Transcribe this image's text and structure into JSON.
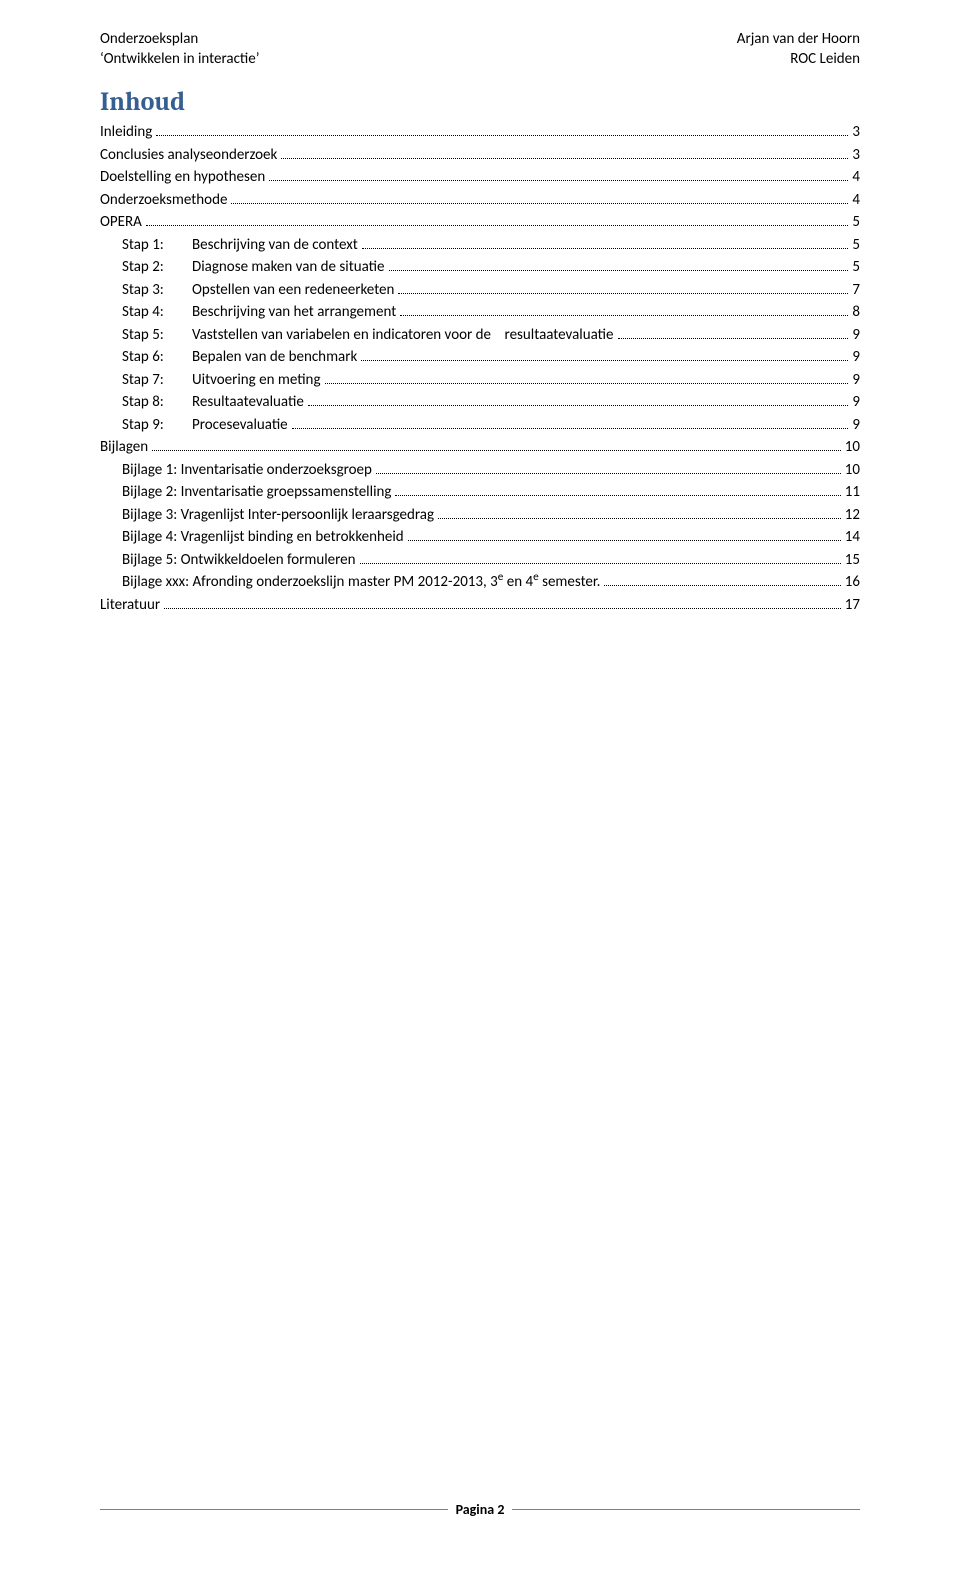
{
  "header": {
    "left_line1": "Onderzoeksplan",
    "left_line2_quoted": "Ontwikkelen in interactie",
    "right_line1": "Arjan van der Hoorn",
    "right_line2": "ROC Leiden"
  },
  "title": "Inhoud",
  "toc": [
    {
      "indent": 0,
      "label": "",
      "title": "Inleiding",
      "page": "3"
    },
    {
      "indent": 0,
      "label": "",
      "title": "Conclusies analyseonderzoek",
      "page": "3"
    },
    {
      "indent": 0,
      "label": "",
      "title": "Doelstelling en hypothesen",
      "page": "4"
    },
    {
      "indent": 0,
      "label": "",
      "title": "Onderzoeksmethode",
      "page": "4"
    },
    {
      "indent": 0,
      "label": "",
      "title": "OPERA",
      "page": "5"
    },
    {
      "indent": 1,
      "label": "Stap 1:",
      "title": "Beschrijving van de context",
      "page": "5"
    },
    {
      "indent": 1,
      "label": "Stap 2:",
      "title": "Diagnose maken van de situatie",
      "page": "5"
    },
    {
      "indent": 1,
      "label": "Stap 3:",
      "title": "Opstellen van een redeneerketen",
      "page": "7"
    },
    {
      "indent": 1,
      "label": "Stap 4:",
      "title": "Beschrijving van het arrangement",
      "page": "8"
    },
    {
      "indent": 1,
      "label": "Stap 5:",
      "title": "Vaststellen van variabelen en indicatoren voor de    resultaatevaluatie",
      "page": "9"
    },
    {
      "indent": 1,
      "label": "Stap 6:",
      "title": "Bepalen van de benchmark",
      "page": "9"
    },
    {
      "indent": 1,
      "label": "Stap 7:",
      "title": "Uitvoering en meting",
      "page": "9"
    },
    {
      "indent": 1,
      "label": "Stap 8:",
      "title": "Resultaatevaluatie",
      "page": "9"
    },
    {
      "indent": 1,
      "label": "Stap 9:",
      "title": "Procesevaluatie",
      "page": "9"
    },
    {
      "indent": 0,
      "label": "",
      "title": "Bijlagen",
      "page": "10"
    },
    {
      "indent": 1,
      "label": "",
      "title": "Bijlage 1: Inventarisatie onderzoeksgroep",
      "page": "10"
    },
    {
      "indent": 1,
      "label": "",
      "title": "Bijlage 2: Inventarisatie groepssamenstelling",
      "page": "11"
    },
    {
      "indent": 1,
      "label": "",
      "title": "Bijlage 3: Vragenlijst Inter-persoonlijk leraarsgedrag",
      "page": "12"
    },
    {
      "indent": 1,
      "label": "",
      "title": "Bijlage 4: Vragenlijst binding en betrokkenheid",
      "page": "14"
    },
    {
      "indent": 1,
      "label": "",
      "title": "Bijlage 5: Ontwikkeldoelen formuleren",
      "page": "15"
    },
    {
      "indent": 1,
      "label": "",
      "title_html": "Bijlage xxx: Afronding onderzoekslijn master PM 2012-2013, 3<sup>e</sup> en 4<sup>e</sup> semester.",
      "title": "Bijlage xxx: Afronding onderzoekslijn master PM 2012-2013, 3e en 4e semester.",
      "page": "16"
    },
    {
      "indent": 0,
      "label": "",
      "title": "Literatuur",
      "page": "17"
    }
  ],
  "footer": {
    "label": "Pagina 2"
  },
  "colors": {
    "heading": "#365f91",
    "text": "#000000",
    "divider": "#7f7f7f",
    "background": "#ffffff"
  }
}
